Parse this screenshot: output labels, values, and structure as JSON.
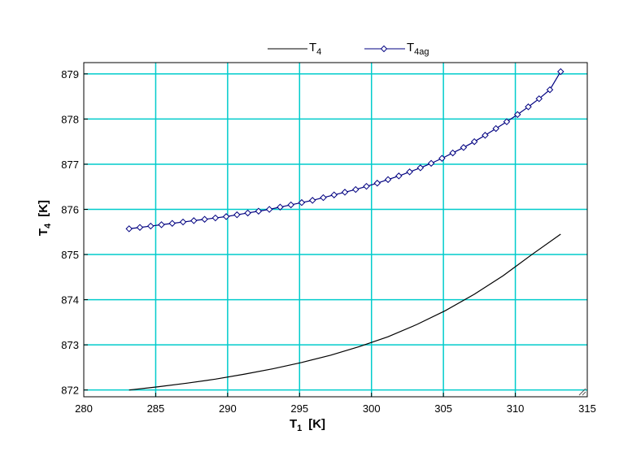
{
  "chart_data": {
    "type": "line",
    "xlabel": {
      "main": "T",
      "sub": "1",
      "unit": "[K]"
    },
    "ylabel": {
      "main": "T",
      "sub": "4",
      "unit": "[K]"
    },
    "xlim": [
      280,
      315
    ],
    "ylim": [
      871.85,
      879.25
    ],
    "xticks": [
      "280",
      "285",
      "290",
      "295",
      "300",
      "305",
      "310",
      "315"
    ],
    "yticks": [
      "872",
      "873",
      "874",
      "875",
      "876",
      "877",
      "878",
      "879"
    ],
    "grid": true,
    "legend_position": "top",
    "colors": {
      "grid": "#00cccc",
      "T4": "#000000",
      "T4ag": "#000080",
      "frame": "#000000"
    },
    "series": [
      {
        "name": {
          "main": "T",
          "sub": "4"
        },
        "marker": "none",
        "x": [
          283.15,
          285.15,
          287.15,
          289.15,
          291.15,
          293.15,
          295.15,
          297.15,
          299.15,
          301.15,
          303.15,
          305.15,
          307.15,
          309.15,
          311.15,
          313.15
        ],
        "y": [
          872.0,
          872.07,
          872.15,
          872.24,
          872.35,
          872.47,
          872.61,
          872.77,
          872.96,
          873.18,
          873.45,
          873.76,
          874.12,
          874.53,
          875.0,
          875.45
        ]
      },
      {
        "name": {
          "main": "T",
          "sub": "4ag"
        },
        "marker": "diamond",
        "x": [
          283.15,
          283.9,
          284.65,
          285.4,
          286.15,
          286.9,
          287.65,
          288.4,
          289.15,
          289.9,
          290.65,
          291.4,
          292.15,
          292.9,
          293.65,
          294.4,
          295.15,
          295.9,
          296.65,
          297.4,
          298.15,
          298.9,
          299.65,
          300.4,
          301.15,
          301.9,
          302.65,
          303.4,
          304.15,
          304.9,
          305.65,
          306.4,
          307.15,
          307.9,
          308.65,
          309.4,
          310.15,
          310.9,
          311.65,
          312.4,
          313.15
        ],
        "y": [
          875.57,
          875.6,
          875.63,
          875.66,
          875.69,
          875.72,
          875.75,
          875.78,
          875.81,
          875.84,
          875.88,
          875.92,
          875.96,
          876.0,
          876.05,
          876.1,
          876.15,
          876.2,
          876.26,
          876.32,
          876.38,
          876.44,
          876.51,
          876.58,
          876.66,
          876.74,
          876.83,
          876.92,
          877.02,
          877.13,
          877.25,
          877.37,
          877.5,
          877.64,
          877.79,
          877.94,
          878.1,
          878.27,
          878.45,
          878.65,
          879.05
        ]
      }
    ]
  }
}
